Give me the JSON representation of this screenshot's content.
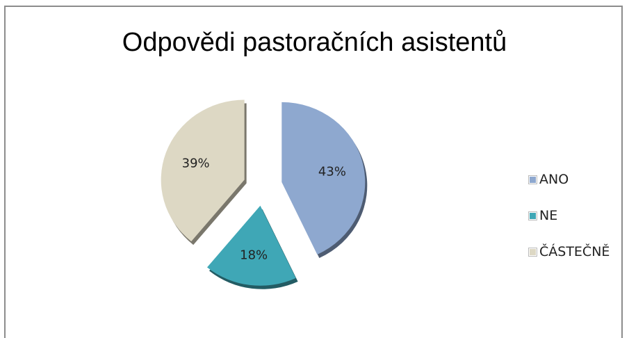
{
  "chart_data": {
    "type": "pie",
    "title": "Odpovědi pastoračních asistentů",
    "slices": [
      {
        "name": "ANO",
        "value": 43,
        "label": "43%",
        "color": "#8ea8cf"
      },
      {
        "name": "NE",
        "value": 18,
        "label": "18%",
        "color": "#3fa7b6"
      },
      {
        "name": "ČÁSTEČNĚ",
        "value": 39,
        "label": "39%",
        "color": "#ddd8c4"
      }
    ],
    "legend_position": "right"
  }
}
